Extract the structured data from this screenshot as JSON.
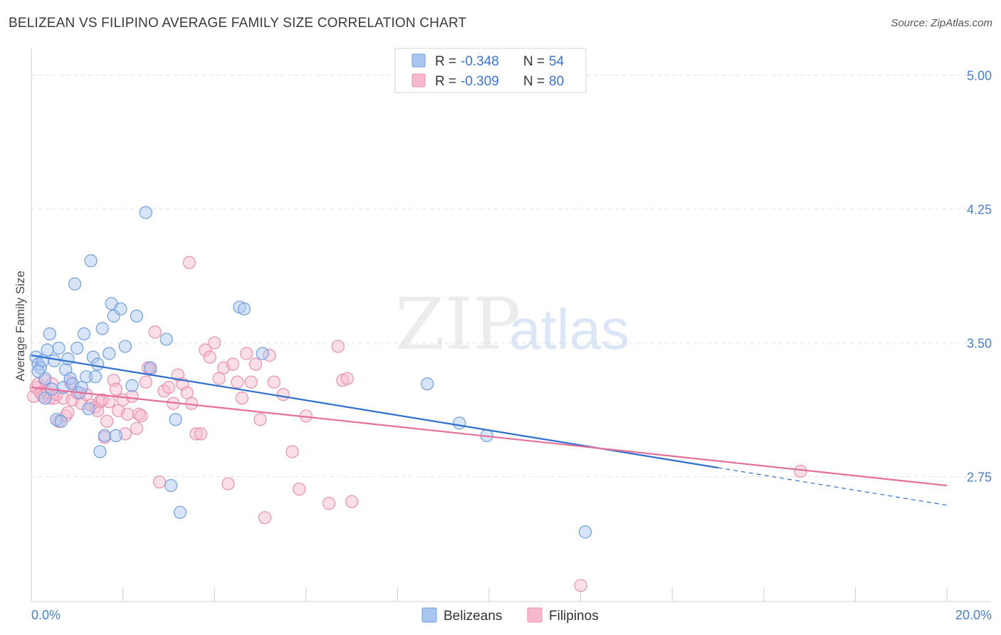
{
  "title": "BELIZEAN VS FILIPINO AVERAGE FAMILY SIZE CORRELATION CHART",
  "source": "Source: ZipAtlas.com",
  "watermark": {
    "zip": "ZIP",
    "atlas": "atlas"
  },
  "colors": {
    "blue_fill": "#a9c6f0",
    "blue_stroke": "#6f9fe0",
    "blue_line": "#2f6fd0",
    "pink_fill": "#f6b8cc",
    "pink_stroke": "#ec8fae",
    "pink_line": "#e66f9a",
    "grid": "#e3e3e3",
    "tick_label": "#4a7fd0"
  },
  "legend": {
    "items": [
      {
        "r_label": "R =",
        "r_value": "-0.348",
        "n_label": "N =",
        "n_value": "54",
        "color": "blue"
      },
      {
        "r_label": "R =",
        "r_value": "-0.309",
        "n_label": "N =",
        "n_value": "80",
        "color": "pink"
      }
    ]
  },
  "bottom_legend": [
    {
      "label": "Belizeans",
      "color": "blue"
    },
    {
      "label": "Filipinos",
      "color": "pink"
    }
  ],
  "chart_data": {
    "type": "scatter",
    "title": "BELIZEAN VS FILIPINO AVERAGE FAMILY SIZE CORRELATION CHART",
    "xlabel": "",
    "ylabel": "Average Family Size",
    "xlim": [
      0,
      20
    ],
    "ylim": [
      2.05,
      5.15
    ],
    "x_tick_labels": [
      "0.0%",
      "20.0%"
    ],
    "y_ticks": [
      2.75,
      3.5,
      4.25,
      5.0
    ],
    "y_tick_labels": [
      "2.75",
      "3.50",
      "4.25",
      "5.00"
    ],
    "grid": "horizontal dashed",
    "legend_placement": "top-center",
    "series": [
      {
        "name": "Belizeans",
        "color": "blue",
        "trend": {
          "x0": 0.0,
          "y0": 3.43,
          "x1": 15.0,
          "y1": 2.8,
          "dash_to_x": 20.0,
          "dash_to_y": 2.59
        },
        "points": [
          [
            0.1,
            3.42
          ],
          [
            0.15,
            3.38
          ],
          [
            0.2,
            3.36
          ],
          [
            0.25,
            3.4
          ],
          [
            0.3,
            3.3
          ],
          [
            0.35,
            3.46
          ],
          [
            0.4,
            3.55
          ],
          [
            0.5,
            3.4
          ],
          [
            0.55,
            3.07
          ],
          [
            0.6,
            3.47
          ],
          [
            0.7,
            3.25
          ],
          [
            0.75,
            3.35
          ],
          [
            0.8,
            3.41
          ],
          [
            0.85,
            3.3
          ],
          [
            0.9,
            3.27
          ],
          [
            0.95,
            3.83
          ],
          [
            1.0,
            3.47
          ],
          [
            1.05,
            3.22
          ],
          [
            1.1,
            3.25
          ],
          [
            1.15,
            3.55
          ],
          [
            1.2,
            3.31
          ],
          [
            1.25,
            3.13
          ],
          [
            1.3,
            3.96
          ],
          [
            1.35,
            3.42
          ],
          [
            1.4,
            3.31
          ],
          [
            1.45,
            3.38
          ],
          [
            1.5,
            2.89
          ],
          [
            1.55,
            3.58
          ],
          [
            1.6,
            2.98
          ],
          [
            1.7,
            3.44
          ],
          [
            1.75,
            3.72
          ],
          [
            1.8,
            3.65
          ],
          [
            1.85,
            2.98
          ],
          [
            1.95,
            3.69
          ],
          [
            2.05,
            3.48
          ],
          [
            2.2,
            3.26
          ],
          [
            2.3,
            3.65
          ],
          [
            2.5,
            4.23
          ],
          [
            2.6,
            3.36
          ],
          [
            2.95,
            3.52
          ],
          [
            3.05,
            2.7
          ],
          [
            3.15,
            3.07
          ],
          [
            3.25,
            2.55
          ],
          [
            4.55,
            3.7
          ],
          [
            4.65,
            3.69
          ],
          [
            5.05,
            3.44
          ],
          [
            8.65,
            3.27
          ],
          [
            9.35,
            3.05
          ],
          [
            9.95,
            2.98
          ],
          [
            12.1,
            2.44
          ],
          [
            0.15,
            3.34
          ],
          [
            0.3,
            3.19
          ],
          [
            0.45,
            3.24
          ],
          [
            0.65,
            3.06
          ]
        ]
      },
      {
        "name": "Filipinos",
        "color": "pink",
        "trend": {
          "x0": 0.0,
          "y0": 3.25,
          "x1": 20.0,
          "y1": 2.7
        },
        "points": [
          [
            0.05,
            3.2
          ],
          [
            0.1,
            3.25
          ],
          [
            0.15,
            3.27
          ],
          [
            0.2,
            3.22
          ],
          [
            0.25,
            3.2
          ],
          [
            0.3,
            3.29
          ],
          [
            0.35,
            3.22
          ],
          [
            0.4,
            3.19
          ],
          [
            0.45,
            3.27
          ],
          [
            0.5,
            3.19
          ],
          [
            0.55,
            3.21
          ],
          [
            0.6,
            3.06
          ],
          [
            0.7,
            3.19
          ],
          [
            0.75,
            3.09
          ],
          [
            0.8,
            3.11
          ],
          [
            0.85,
            3.28
          ],
          [
            0.9,
            3.18
          ],
          [
            1.0,
            3.22
          ],
          [
            1.1,
            3.16
          ],
          [
            1.2,
            3.21
          ],
          [
            1.3,
            3.15
          ],
          [
            1.4,
            3.14
          ],
          [
            1.45,
            3.12
          ],
          [
            1.5,
            3.17
          ],
          [
            1.6,
            2.97
          ],
          [
            1.65,
            3.06
          ],
          [
            1.7,
            3.17
          ],
          [
            1.8,
            3.29
          ],
          [
            1.85,
            3.24
          ],
          [
            1.9,
            3.12
          ],
          [
            2.0,
            3.18
          ],
          [
            2.05,
            2.99
          ],
          [
            2.1,
            3.1
          ],
          [
            2.2,
            3.2
          ],
          [
            2.3,
            3.02
          ],
          [
            2.35,
            3.1
          ],
          [
            2.4,
            3.09
          ],
          [
            2.5,
            3.28
          ],
          [
            2.6,
            3.35
          ],
          [
            2.7,
            3.56
          ],
          [
            2.8,
            2.72
          ],
          [
            2.9,
            3.23
          ],
          [
            3.0,
            3.25
          ],
          [
            3.1,
            3.16
          ],
          [
            3.2,
            3.32
          ],
          [
            3.3,
            3.27
          ],
          [
            3.4,
            3.22
          ],
          [
            3.5,
            3.16
          ],
          [
            3.6,
            2.99
          ],
          [
            3.7,
            2.99
          ],
          [
            3.8,
            3.46
          ],
          [
            3.9,
            3.42
          ],
          [
            4.0,
            3.5
          ],
          [
            4.1,
            3.3
          ],
          [
            4.2,
            3.36
          ],
          [
            4.3,
            2.71
          ],
          [
            4.4,
            3.38
          ],
          [
            4.5,
            3.28
          ],
          [
            4.6,
            3.19
          ],
          [
            4.7,
            3.44
          ],
          [
            4.8,
            3.28
          ],
          [
            4.9,
            3.38
          ],
          [
            5.0,
            3.07
          ],
          [
            5.1,
            2.52
          ],
          [
            5.2,
            3.43
          ],
          [
            5.3,
            3.28
          ],
          [
            5.5,
            3.21
          ],
          [
            5.7,
            2.89
          ],
          [
            5.85,
            2.68
          ],
          [
            6.0,
            3.09
          ],
          [
            6.5,
            2.6
          ],
          [
            6.7,
            3.48
          ],
          [
            6.8,
            3.29
          ],
          [
            6.9,
            3.3
          ],
          [
            7.0,
            2.61
          ],
          [
            3.45,
            3.95
          ],
          [
            12.0,
            2.14
          ],
          [
            16.8,
            2.78
          ],
          [
            2.55,
            3.36
          ],
          [
            1.55,
            3.18
          ]
        ]
      }
    ]
  }
}
